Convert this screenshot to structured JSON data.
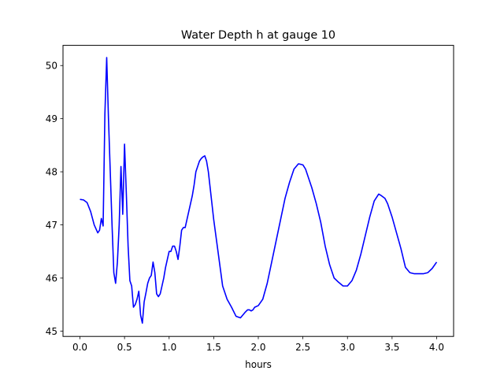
{
  "chart_data": {
    "type": "line",
    "title": "Water Depth h at gauge 10",
    "xlabel": "hours",
    "ylabel": "",
    "xlim": [
      -0.19,
      4.19
    ],
    "ylim": [
      44.9,
      50.38
    ],
    "xticks": [
      {
        "value": 0.0,
        "label": "0.0"
      },
      {
        "value": 0.5,
        "label": "0.5"
      },
      {
        "value": 1.0,
        "label": "1.0"
      },
      {
        "value": 1.5,
        "label": "1.5"
      },
      {
        "value": 2.0,
        "label": "2.0"
      },
      {
        "value": 2.5,
        "label": "2.5"
      },
      {
        "value": 3.0,
        "label": "3.0"
      },
      {
        "value": 3.5,
        "label": "3.5"
      },
      {
        "value": 4.0,
        "label": "4.0"
      }
    ],
    "yticks": [
      {
        "value": 45,
        "label": "45"
      },
      {
        "value": 46,
        "label": "46"
      },
      {
        "value": 47,
        "label": "47"
      },
      {
        "value": 48,
        "label": "48"
      },
      {
        "value": 49,
        "label": "49"
      },
      {
        "value": 50,
        "label": "50"
      }
    ],
    "grid": false,
    "series": [
      {
        "color": "#0000ff",
        "x": [
          0.0,
          0.04,
          0.08,
          0.12,
          0.16,
          0.2,
          0.22,
          0.24,
          0.26,
          0.28,
          0.3,
          0.32,
          0.34,
          0.36,
          0.38,
          0.4,
          0.42,
          0.44,
          0.46,
          0.48,
          0.5,
          0.52,
          0.54,
          0.56,
          0.58,
          0.6,
          0.62,
          0.64,
          0.66,
          0.68,
          0.7,
          0.72,
          0.74,
          0.76,
          0.78,
          0.8,
          0.82,
          0.84,
          0.86,
          0.88,
          0.9,
          0.92,
          0.94,
          0.96,
          0.98,
          1.0,
          1.02,
          1.04,
          1.06,
          1.08,
          1.1,
          1.12,
          1.14,
          1.16,
          1.18,
          1.2,
          1.22,
          1.24,
          1.26,
          1.28,
          1.3,
          1.32,
          1.34,
          1.36,
          1.38,
          1.4,
          1.42,
          1.44,
          1.46,
          1.48,
          1.5,
          1.52,
          1.54,
          1.56,
          1.58,
          1.6,
          1.65,
          1.7,
          1.75,
          1.8,
          1.85,
          1.88,
          1.9,
          1.92,
          1.94,
          1.96,
          2.0,
          2.05,
          2.1,
          2.15,
          2.2,
          2.25,
          2.3,
          2.35,
          2.4,
          2.45,
          2.5,
          2.53,
          2.56,
          2.6,
          2.65,
          2.7,
          2.75,
          2.8,
          2.85,
          2.9,
          2.95,
          3.0,
          3.05,
          3.1,
          3.15,
          3.2,
          3.25,
          3.3,
          3.35,
          3.38,
          3.42,
          3.45,
          3.5,
          3.55,
          3.6,
          3.65,
          3.7,
          3.75,
          3.8,
          3.85,
          3.9,
          3.95,
          4.0
        ],
        "y": [
          47.48,
          47.47,
          47.42,
          47.25,
          47.0,
          46.85,
          46.9,
          47.12,
          46.98,
          49.1,
          50.15,
          49.0,
          48.0,
          47.0,
          46.1,
          45.9,
          46.3,
          47.0,
          48.1,
          47.2,
          48.52,
          47.6,
          46.6,
          45.95,
          45.85,
          45.45,
          45.5,
          45.6,
          45.75,
          45.3,
          45.15,
          45.55,
          45.72,
          45.9,
          46.0,
          46.05,
          46.3,
          46.1,
          45.7,
          45.65,
          45.7,
          45.85,
          46.0,
          46.2,
          46.35,
          46.5,
          46.5,
          46.6,
          46.6,
          46.5,
          46.35,
          46.6,
          46.9,
          46.95,
          46.95,
          47.1,
          47.25,
          47.4,
          47.55,
          47.75,
          48.0,
          48.1,
          48.2,
          48.25,
          48.28,
          48.3,
          48.2,
          48.0,
          47.7,
          47.4,
          47.1,
          46.85,
          46.6,
          46.35,
          46.1,
          45.85,
          45.6,
          45.45,
          45.28,
          45.25,
          45.35,
          45.4,
          45.4,
          45.38,
          45.4,
          45.45,
          45.48,
          45.6,
          45.9,
          46.3,
          46.7,
          47.1,
          47.5,
          47.8,
          48.05,
          48.15,
          48.13,
          48.05,
          47.9,
          47.7,
          47.4,
          47.05,
          46.6,
          46.25,
          46.0,
          45.92,
          45.85,
          45.85,
          45.95,
          46.15,
          46.45,
          46.8,
          47.15,
          47.45,
          47.58,
          47.55,
          47.5,
          47.4,
          47.15,
          46.85,
          46.55,
          46.2,
          46.1,
          46.08,
          46.08,
          46.08,
          46.1,
          46.18,
          46.3
        ]
      }
    ]
  }
}
